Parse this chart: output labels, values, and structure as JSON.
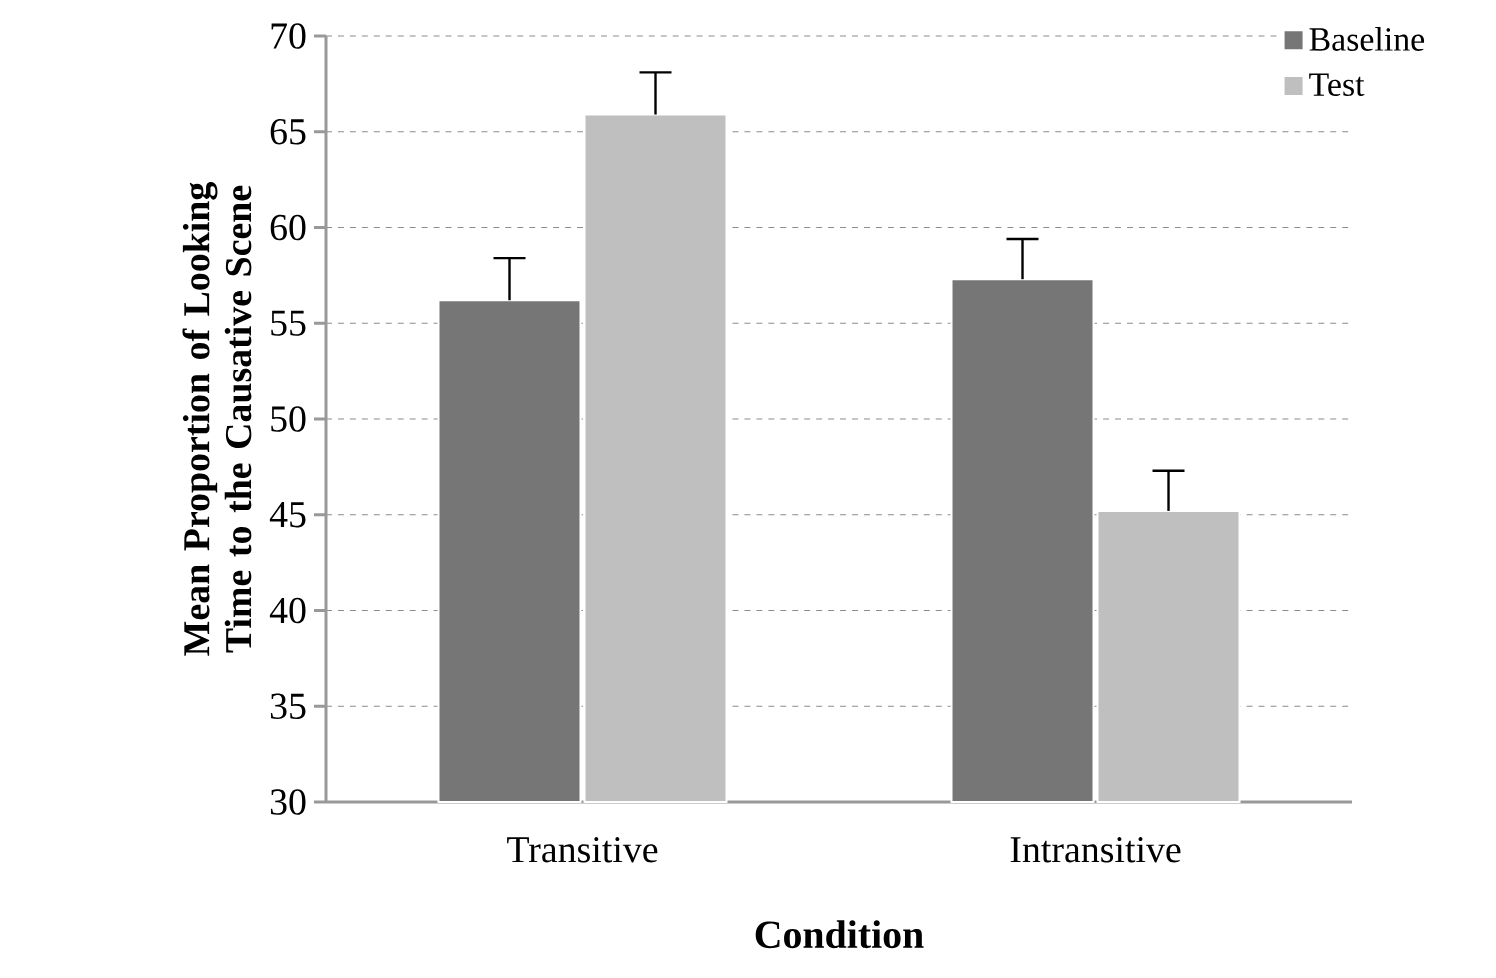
{
  "chart_data": {
    "type": "bar",
    "xlabel": "Condition",
    "ylabel": "Mean Proportion of Looking Time to the Causative Scene",
    "categories": [
      "Transitive",
      "Intransitive"
    ],
    "series": [
      {
        "name": "Baseline",
        "color": "#767676",
        "values": [
          56.2,
          57.3
        ],
        "errors": [
          [
            56.2,
            58.4
          ],
          [
            57.3,
            59.4
          ]
        ]
      },
      {
        "name": "Test",
        "color": "#bfbfbf",
        "values": [
          65.9,
          45.2
        ],
        "errors": [
          [
            65.9,
            68.1
          ],
          [
            45.2,
            47.3
          ]
        ]
      }
    ],
    "ylim": [
      30,
      70
    ],
    "yticks": [
      30,
      35,
      40,
      45,
      50,
      55,
      60,
      65,
      70
    ],
    "grid": "y",
    "legend": "top right"
  }
}
